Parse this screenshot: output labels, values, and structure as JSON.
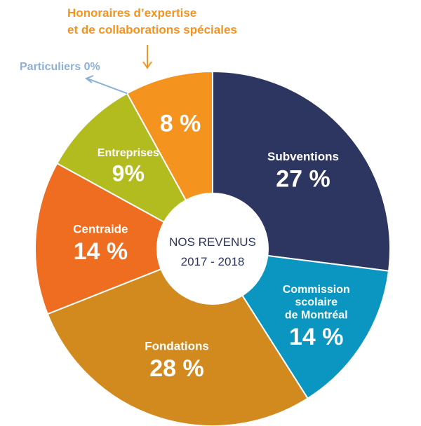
{
  "chart_data": {
    "type": "pie",
    "center_title": "NOS REVENUS",
    "center_subtitle": "2017 - 2018",
    "slices": [
      {
        "name": "Subventions",
        "value": 27,
        "display": "27 %",
        "color": "#2d3561",
        "label_lines": [
          "Subventions"
        ]
      },
      {
        "name": "Commission scolaire de Montréal",
        "value": 14,
        "display": "14 %",
        "color": "#0b96c1",
        "label_lines": [
          "Commission",
          "scolaire",
          "de Montréal"
        ]
      },
      {
        "name": "Fondations",
        "value": 28,
        "display": "28 %",
        "color": "#d28a1e",
        "label_lines": [
          "Fondations"
        ]
      },
      {
        "name": "Centraide",
        "value": 14,
        "display": "14 %",
        "color": "#ee6d21",
        "label_lines": [
          "Centraide"
        ]
      },
      {
        "name": "Entreprises",
        "value": 9,
        "display": "9%",
        "color": "#b3bc1f",
        "label_lines": [
          "Entreprises"
        ]
      },
      {
        "name": "Particuliers",
        "value": 0,
        "display": "0%",
        "color": "#8db0d6",
        "label_lines": [
          "Particuliers 0%"
        ]
      },
      {
        "name": "Honoraires d'expertise et de collaborations spéciales",
        "value": 8,
        "display": "8 %",
        "color": "#f5931f",
        "label_lines": [
          "Honoraires d’expertise",
          "et de collaborations spéciales"
        ]
      }
    ]
  }
}
